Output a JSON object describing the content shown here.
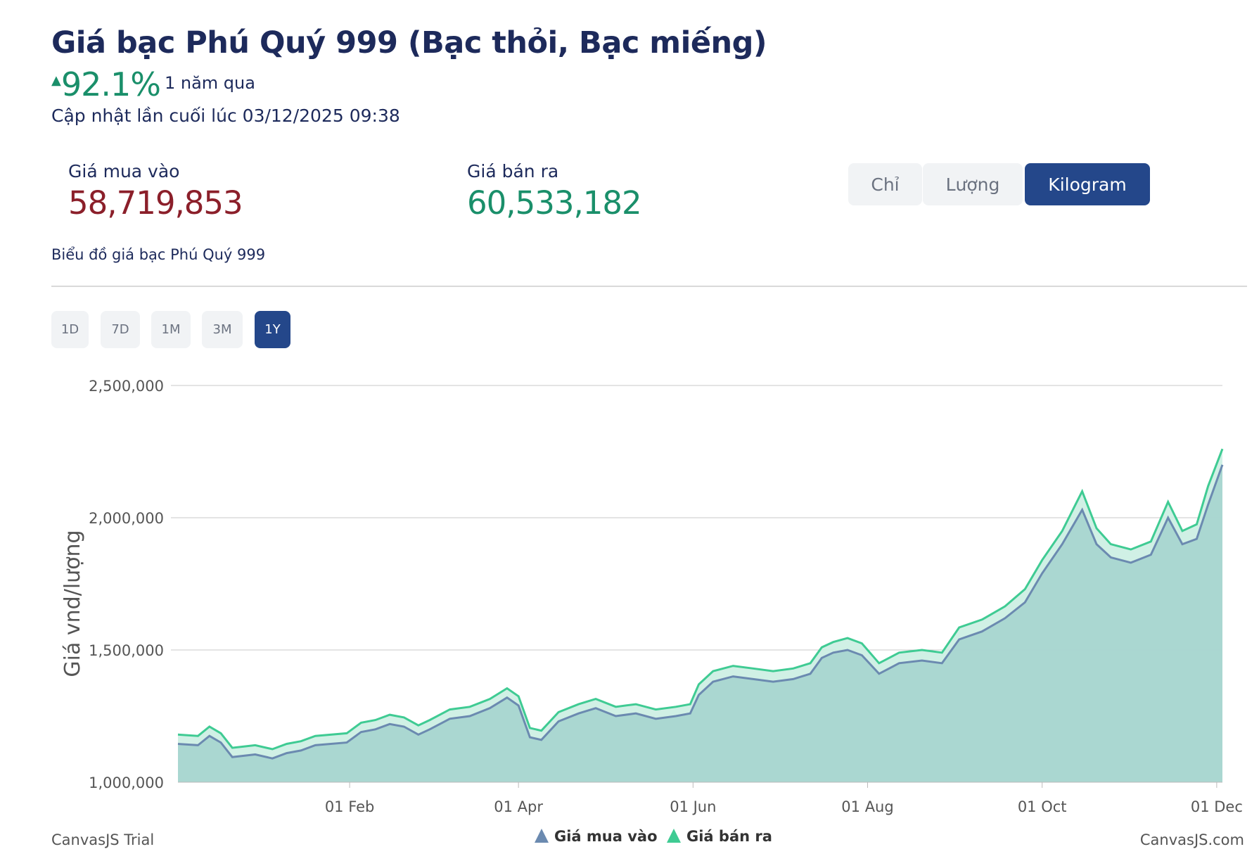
{
  "header": {
    "title": "Giá bạc Phú Quý 999 (Bạc thỏi, Bạc miếng)",
    "change_arrow": "▲",
    "change_value": "92.1%",
    "change_label": "1 năm qua",
    "updated": "Cập nhật lần cuối lúc 03/12/2025 09:38"
  },
  "prices": {
    "buy_label": "Giá mua vào",
    "buy_value": "58,719,853",
    "sell_label": "Giá bán ra",
    "sell_value": "60,533,182"
  },
  "units": {
    "options": [
      "Chỉ",
      "Lượng",
      "Kilogram"
    ],
    "selected": "Kilogram"
  },
  "chart_caption": "Biểu đồ giá bạc Phú Quý 999",
  "ranges": {
    "options": [
      "1D",
      "7D",
      "1M",
      "3M",
      "1Y"
    ],
    "selected": "1Y"
  },
  "colors": {
    "buy": "#6b8ab0",
    "sell": "#3fcb93",
    "area": "#a8d5d0",
    "active_button": "#24478a",
    "buy_value": "#8b1f2a",
    "sell_value": "#1a8f6a"
  },
  "credits": {
    "left": "CanvasJS Trial",
    "right": "CanvasJS.com"
  },
  "chart_data": {
    "type": "area",
    "title": "",
    "xlabel": "",
    "ylabel": "Giá vnd/lượng",
    "ylim": [
      1000000,
      2500000
    ],
    "yticks": [
      1000000,
      1500000,
      2000000,
      2500000
    ],
    "ytick_labels": [
      "1,000,000",
      "1,500,000",
      "2,000,000",
      "2,500,000"
    ],
    "xlim": [
      "2024-12-03",
      "2025-12-03"
    ],
    "xticks": [
      "2025-02-01",
      "2025-04-01",
      "2025-06-01",
      "2025-08-01",
      "2025-10-01",
      "2025-12-01"
    ],
    "xtick_labels": [
      "01 Feb",
      "01 Apr",
      "01 Jun",
      "01 Aug",
      "01 Oct",
      "01 Dec"
    ],
    "grid": true,
    "legend": "bottom-center",
    "series": [
      {
        "name": "Giá mua vào",
        "points": [
          [
            "2024-12-03",
            1145000
          ],
          [
            "2024-12-10",
            1140000
          ],
          [
            "2024-12-14",
            1175000
          ],
          [
            "2024-12-18",
            1150000
          ],
          [
            "2024-12-22",
            1095000
          ],
          [
            "2024-12-26",
            1100000
          ],
          [
            "2024-12-30",
            1105000
          ],
          [
            "2025-01-05",
            1090000
          ],
          [
            "2025-01-10",
            1110000
          ],
          [
            "2025-01-15",
            1120000
          ],
          [
            "2025-01-20",
            1140000
          ],
          [
            "2025-01-31",
            1150000
          ],
          [
            "2025-02-05",
            1190000
          ],
          [
            "2025-02-10",
            1200000
          ],
          [
            "2025-02-15",
            1220000
          ],
          [
            "2025-02-20",
            1210000
          ],
          [
            "2025-02-25",
            1180000
          ],
          [
            "2025-03-01",
            1200000
          ],
          [
            "2025-03-08",
            1240000
          ],
          [
            "2025-03-15",
            1250000
          ],
          [
            "2025-03-22",
            1280000
          ],
          [
            "2025-03-28",
            1320000
          ],
          [
            "2025-04-01",
            1290000
          ],
          [
            "2025-04-05",
            1170000
          ],
          [
            "2025-04-09",
            1160000
          ],
          [
            "2025-04-15",
            1230000
          ],
          [
            "2025-04-22",
            1260000
          ],
          [
            "2025-04-28",
            1280000
          ],
          [
            "2025-05-05",
            1250000
          ],
          [
            "2025-05-12",
            1260000
          ],
          [
            "2025-05-19",
            1240000
          ],
          [
            "2025-05-26",
            1250000
          ],
          [
            "2025-05-31",
            1260000
          ],
          [
            "2025-06-03",
            1330000
          ],
          [
            "2025-06-08",
            1380000
          ],
          [
            "2025-06-15",
            1400000
          ],
          [
            "2025-06-22",
            1390000
          ],
          [
            "2025-06-29",
            1380000
          ],
          [
            "2025-07-06",
            1390000
          ],
          [
            "2025-07-12",
            1410000
          ],
          [
            "2025-07-16",
            1470000
          ],
          [
            "2025-07-20",
            1490000
          ],
          [
            "2025-07-25",
            1500000
          ],
          [
            "2025-07-30",
            1480000
          ],
          [
            "2025-08-05",
            1410000
          ],
          [
            "2025-08-12",
            1450000
          ],
          [
            "2025-08-20",
            1460000
          ],
          [
            "2025-08-27",
            1450000
          ],
          [
            "2025-09-02",
            1540000
          ],
          [
            "2025-09-10",
            1570000
          ],
          [
            "2025-09-18",
            1620000
          ],
          [
            "2025-09-25",
            1680000
          ],
          [
            "2025-10-01",
            1790000
          ],
          [
            "2025-10-08",
            1900000
          ],
          [
            "2025-10-15",
            2030000
          ],
          [
            "2025-10-20",
            1900000
          ],
          [
            "2025-10-25",
            1850000
          ],
          [
            "2025-11-01",
            1830000
          ],
          [
            "2025-11-08",
            1860000
          ],
          [
            "2025-11-14",
            2000000
          ],
          [
            "2025-11-19",
            1900000
          ],
          [
            "2025-11-24",
            1920000
          ],
          [
            "2025-11-28",
            2050000
          ],
          [
            "2025-12-03",
            2200000
          ]
        ]
      },
      {
        "name": "Giá bán ra",
        "points": [
          [
            "2024-12-03",
            1180000
          ],
          [
            "2024-12-10",
            1175000
          ],
          [
            "2024-12-14",
            1210000
          ],
          [
            "2024-12-18",
            1185000
          ],
          [
            "2024-12-22",
            1130000
          ],
          [
            "2024-12-26",
            1135000
          ],
          [
            "2024-12-30",
            1140000
          ],
          [
            "2025-01-05",
            1125000
          ],
          [
            "2025-01-10",
            1145000
          ],
          [
            "2025-01-15",
            1155000
          ],
          [
            "2025-01-20",
            1175000
          ],
          [
            "2025-01-31",
            1185000
          ],
          [
            "2025-02-05",
            1225000
          ],
          [
            "2025-02-10",
            1235000
          ],
          [
            "2025-02-15",
            1255000
          ],
          [
            "2025-02-20",
            1245000
          ],
          [
            "2025-02-25",
            1215000
          ],
          [
            "2025-03-01",
            1235000
          ],
          [
            "2025-03-08",
            1275000
          ],
          [
            "2025-03-15",
            1285000
          ],
          [
            "2025-03-22",
            1315000
          ],
          [
            "2025-03-28",
            1355000
          ],
          [
            "2025-04-01",
            1325000
          ],
          [
            "2025-04-05",
            1205000
          ],
          [
            "2025-04-09",
            1195000
          ],
          [
            "2025-04-15",
            1265000
          ],
          [
            "2025-04-22",
            1295000
          ],
          [
            "2025-04-28",
            1315000
          ],
          [
            "2025-05-05",
            1285000
          ],
          [
            "2025-05-12",
            1295000
          ],
          [
            "2025-05-19",
            1275000
          ],
          [
            "2025-05-26",
            1285000
          ],
          [
            "2025-05-31",
            1295000
          ],
          [
            "2025-06-03",
            1370000
          ],
          [
            "2025-06-08",
            1420000
          ],
          [
            "2025-06-15",
            1440000
          ],
          [
            "2025-06-22",
            1430000
          ],
          [
            "2025-06-29",
            1420000
          ],
          [
            "2025-07-06",
            1430000
          ],
          [
            "2025-07-12",
            1450000
          ],
          [
            "2025-07-16",
            1510000
          ],
          [
            "2025-07-20",
            1530000
          ],
          [
            "2025-07-25",
            1545000
          ],
          [
            "2025-07-30",
            1525000
          ],
          [
            "2025-08-05",
            1450000
          ],
          [
            "2025-08-12",
            1490000
          ],
          [
            "2025-08-20",
            1500000
          ],
          [
            "2025-08-27",
            1490000
          ],
          [
            "2025-09-02",
            1585000
          ],
          [
            "2025-09-10",
            1615000
          ],
          [
            "2025-09-18",
            1665000
          ],
          [
            "2025-09-25",
            1730000
          ],
          [
            "2025-10-01",
            1840000
          ],
          [
            "2025-10-08",
            1950000
          ],
          [
            "2025-10-15",
            2100000
          ],
          [
            "2025-10-20",
            1960000
          ],
          [
            "2025-10-25",
            1900000
          ],
          [
            "2025-11-01",
            1880000
          ],
          [
            "2025-11-08",
            1910000
          ],
          [
            "2025-11-14",
            2060000
          ],
          [
            "2025-11-19",
            1950000
          ],
          [
            "2025-11-24",
            1975000
          ],
          [
            "2025-11-28",
            2120000
          ],
          [
            "2025-12-03",
            2260000
          ]
        ]
      }
    ]
  }
}
